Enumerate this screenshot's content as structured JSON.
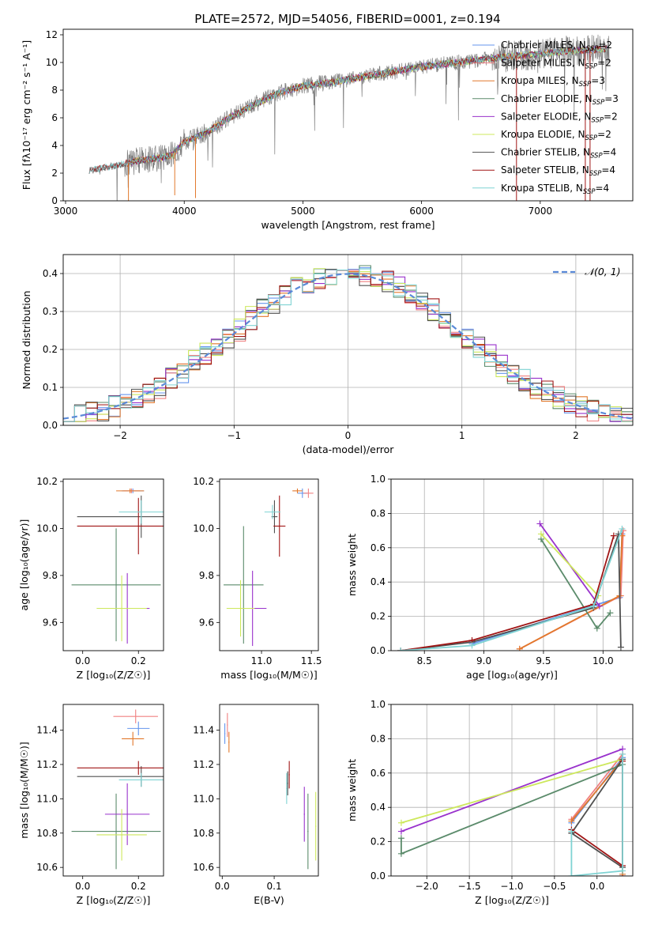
{
  "colors": {
    "chabrier_miles": "#6495ED",
    "salpeter_miles": "#F08080",
    "kroupa_miles": "#E2782B",
    "chabrier_elodie": "#5B8B6B",
    "salpeter_elodie": "#9932CC",
    "kroupa_elodie": "#CDE85C",
    "chabrier_stelib": "#505050",
    "salpeter_stelib": "#A01515",
    "kroupa_stelib": "#7FD3D3",
    "data": "#808080",
    "gauss": "#5A8AD8"
  },
  "chart_data": [
    {
      "id": "spectrum",
      "type": "line",
      "title": "PLATE=2572, MJD=54056, FIBERID=0001, z=0.194",
      "xlabel": "wavelength [Angstrom, rest frame]",
      "ylabel": "Flux [fλ10⁻¹⁷ erg cm⁻² s⁻¹ A⁻¹]",
      "xlim": [
        2980,
        7780
      ],
      "ylim": [
        0,
        12.4
      ],
      "xticks": [
        3000,
        4000,
        5000,
        6000,
        7000
      ],
      "yticks": [
        0,
        2,
        4,
        6,
        8,
        10,
        12
      ],
      "continuum": {
        "x": [
          3200,
          3400,
          3500,
          3600,
          3800,
          3900,
          4000,
          4100,
          4200,
          4400,
          4600,
          4800,
          5000,
          5200,
          5400,
          5600,
          5800,
          6000,
          6200,
          6400,
          6600,
          6800,
          7000,
          7200,
          7400,
          7600
        ],
        "y": [
          2.2,
          2.5,
          2.7,
          2.9,
          3.1,
          3.3,
          4.3,
          4.6,
          5.0,
          6.1,
          7.0,
          7.8,
          8.3,
          8.5,
          8.8,
          9.1,
          9.4,
          9.7,
          9.9,
          10.1,
          10.3,
          10.5,
          10.6,
          10.8,
          10.9,
          11.0
        ]
      },
      "legend_position": "upper-right",
      "legend": [
        {
          "label": "Chabrier MILES, N",
          "sub": "SSP",
          "tail": "=2",
          "color_key": "chabrier_miles"
        },
        {
          "label": "Salpeter MILES, N",
          "sub": "SSP",
          "tail": "=2",
          "color_key": "salpeter_miles"
        },
        {
          "label": "Kroupa MILES, N",
          "sub": "SSP",
          "tail": "=3",
          "color_key": "kroupa_miles"
        },
        {
          "label": "Chabrier ELODIE, N",
          "sub": "SSP",
          "tail": "=3",
          "color_key": "chabrier_elodie"
        },
        {
          "label": "Salpeter ELODIE, N",
          "sub": "SSP",
          "tail": "=2",
          "color_key": "salpeter_elodie"
        },
        {
          "label": "Kroupa ELODIE, N",
          "sub": "SSP",
          "tail": "=2",
          "color_key": "kroupa_elodie"
        },
        {
          "label": "Chabrier STELIB, N",
          "sub": "SSP",
          "tail": "=4",
          "color_key": "chabrier_stelib"
        },
        {
          "label": "Salpeter STELIB, N",
          "sub": "SSP",
          "tail": "=4",
          "color_key": "salpeter_stelib"
        },
        {
          "label": "Kroupa STELIB, N",
          "sub": "SSP",
          "tail": "=4",
          "color_key": "kroupa_stelib"
        }
      ]
    },
    {
      "id": "residuals",
      "type": "histogram",
      "xlabel": "(data-model)/error",
      "ylabel": "Normed distribution",
      "xlim": [
        -2.5,
        2.5
      ],
      "ylim": [
        0,
        0.45
      ],
      "xticks": [
        -2,
        -1,
        0,
        1,
        2
      ],
      "xtick_labels": [
        "−2",
        "−1",
        "0",
        "1",
        "2"
      ],
      "yticks": [
        0.0,
        0.1,
        0.2,
        0.3,
        0.4
      ],
      "ytick_labels": [
        "0.0",
        "0.1",
        "0.2",
        "0.3",
        "0.4"
      ],
      "grid": true,
      "bin_width": 0.1,
      "series": [
        {
          "color_key": "chabrier_miles",
          "offset": 0.012
        },
        {
          "color_key": "salpeter_miles",
          "offset": -0.01
        },
        {
          "color_key": "kroupa_miles",
          "offset": 0.018
        },
        {
          "color_key": "chabrier_elodie",
          "offset": 0.025
        },
        {
          "color_key": "salpeter_elodie",
          "offset": -0.005
        },
        {
          "color_key": "kroupa_elodie",
          "offset": 0.03
        },
        {
          "color_key": "chabrier_stelib",
          "offset": 0.008
        },
        {
          "color_key": "salpeter_stelib",
          "offset": -0.012
        },
        {
          "color_key": "kroupa_stelib",
          "offset": 0.015
        }
      ],
      "gauss": {
        "mean": 0,
        "sigma": 1
      },
      "legend_label": "𝒩(0, 1)",
      "legend_position": "upper-right"
    },
    {
      "id": "z-age",
      "type": "errorbar",
      "xlabel": "Z [log₁₀(Z/Z☉)]",
      "ylabel": "age  [log₁₀(age/yr)]",
      "xlim": [
        -0.07,
        0.29
      ],
      "ylim": [
        9.48,
        10.21
      ],
      "xticks": [
        0.0,
        0.2
      ],
      "xtick_labels": [
        "0.0",
        "0.2"
      ],
      "yticks": [
        9.6,
        9.8,
        10.0,
        10.2
      ],
      "ytick_labels": [
        "9.6",
        "9.8",
        "10.0",
        "10.2"
      ],
      "points": [
        {
          "c": "chabrier_miles",
          "x": 0.18,
          "y": 10.16,
          "xe": 0.04,
          "ye": 0.01
        },
        {
          "c": "salpeter_miles",
          "x": 0.175,
          "y": 10.16,
          "xe": 0.03,
          "ye": 0.01
        },
        {
          "c": "kroupa_miles",
          "x": 0.17,
          "y": 10.16,
          "xe": 0.05,
          "ye": 0.01
        },
        {
          "c": "chabrier_elodie",
          "x": 0.12,
          "y": 9.76,
          "xe": 0.16,
          "ye": 0.24
        },
        {
          "c": "salpeter_elodie",
          "x": 0.16,
          "y": 9.66,
          "xe": 0.08,
          "ye": 0.15
        },
        {
          "c": "kroupa_elodie",
          "x": 0.14,
          "y": 9.66,
          "xe": 0.09,
          "ye": 0.14
        },
        {
          "c": "chabrier_stelib",
          "x": 0.21,
          "y": 10.05,
          "xe": 0.23,
          "ye": 0.09
        },
        {
          "c": "salpeter_stelib",
          "x": 0.2,
          "y": 10.01,
          "xe": 0.22,
          "ye": 0.12
        },
        {
          "c": "kroupa_stelib",
          "x": 0.21,
          "y": 10.07,
          "xe": 0.08,
          "ye": 0.05
        }
      ]
    },
    {
      "id": "mass-age",
      "type": "errorbar",
      "xlabel": "mass [log₁₀(M/M☉)]",
      "ylabel": "",
      "xlim": [
        10.58,
        11.57
      ],
      "ylim": [
        9.48,
        10.21
      ],
      "xticks": [
        11.0,
        11.5
      ],
      "xtick_labels": [
        "11.0",
        "11.5"
      ],
      "yticks": [
        9.6,
        9.8,
        10.0,
        10.2
      ],
      "ytick_labels": [
        "9.6",
        "9.8",
        "10.0",
        "10.2"
      ],
      "points": [
        {
          "c": "chabrier_miles",
          "x": 11.41,
          "y": 10.15,
          "xe": 0.05,
          "ye": 0.02
        },
        {
          "c": "salpeter_miles",
          "x": 11.47,
          "y": 10.15,
          "xe": 0.05,
          "ye": 0.02
        },
        {
          "c": "kroupa_miles",
          "x": 11.36,
          "y": 10.16,
          "xe": 0.05,
          "ye": 0.01
        },
        {
          "c": "chabrier_elodie",
          "x": 10.82,
          "y": 9.76,
          "xe": 0.2,
          "ye": 0.25
        },
        {
          "c": "salpeter_elodie",
          "x": 10.91,
          "y": 9.66,
          "xe": 0.14,
          "ye": 0.16
        },
        {
          "c": "kroupa_elodie",
          "x": 10.79,
          "y": 9.66,
          "xe": 0.14,
          "ye": 0.12
        },
        {
          "c": "chabrier_stelib",
          "x": 11.13,
          "y": 10.05,
          "xe": 0.03,
          "ye": 0.07
        },
        {
          "c": "salpeter_stelib",
          "x": 11.18,
          "y": 10.01,
          "xe": 0.06,
          "ye": 0.13
        },
        {
          "c": "kroupa_stelib",
          "x": 11.11,
          "y": 10.07,
          "xe": 0.08,
          "ye": 0.03
        }
      ]
    },
    {
      "id": "age-weight",
      "type": "line",
      "xlabel": "age  [log₁₀(age/yr)]",
      "ylabel": "mass weight",
      "xlim": [
        8.22,
        10.25
      ],
      "ylim": [
        0,
        1.0
      ],
      "xticks": [
        8.5,
        9.0,
        9.5,
        10.0
      ],
      "xtick_labels": [
        "8.5",
        "9.0",
        "9.5",
        "10.0"
      ],
      "yticks": [
        0.0,
        0.2,
        0.4,
        0.6,
        0.8,
        1.0
      ],
      "ytick_labels": [
        "0.0",
        "0.2",
        "0.4",
        "0.6",
        "0.8",
        "1.0"
      ],
      "grid": true,
      "series": [
        {
          "c": "chabrier_miles",
          "x": [
            8.9,
            10.14,
            10.16
          ],
          "y": [
            0.04,
            0.31,
            0.68
          ]
        },
        {
          "c": "salpeter_miles",
          "x": [
            9.3,
            10.15,
            10.17
          ],
          "y": [
            0.01,
            0.32,
            0.7
          ]
        },
        {
          "c": "kroupa_miles",
          "x": [
            9.3,
            10.14,
            10.16
          ],
          "y": [
            0.01,
            0.32,
            0.67
          ]
        },
        {
          "c": "chabrier_elodie",
          "x": [
            9.48,
            9.95,
            10.06
          ],
          "y": [
            0.65,
            0.13,
            0.22
          ]
        },
        {
          "c": "salpeter_elodie",
          "x": [
            9.47,
            9.97
          ],
          "y": [
            0.74,
            0.26
          ]
        },
        {
          "c": "kroupa_elodie",
          "x": [
            9.48,
            9.96
          ],
          "y": [
            0.68,
            0.32
          ]
        },
        {
          "c": "chabrier_stelib",
          "x": [
            8.3,
            8.9,
            9.92,
            10.13,
            10.15
          ],
          "y": [
            0.0,
            0.05,
            0.25,
            0.68,
            0.02
          ]
        },
        {
          "c": "salpeter_stelib",
          "x": [
            8.3,
            8.9,
            9.92,
            10.09
          ],
          "y": [
            0.0,
            0.06,
            0.27,
            0.67
          ]
        },
        {
          "c": "kroupa_stelib",
          "x": [
            8.3,
            8.9,
            9.92,
            10.16
          ],
          "y": [
            0.0,
            0.03,
            0.26,
            0.71
          ]
        }
      ]
    },
    {
      "id": "z-mass",
      "type": "errorbar",
      "xlabel": "Z [log₁₀(Z/Z☉)]",
      "ylabel": "mass [log₁₀(M/M☉)]",
      "xlim": [
        -0.07,
        0.29
      ],
      "ylim": [
        10.55,
        11.55
      ],
      "xticks": [
        0.0,
        0.2
      ],
      "xtick_labels": [
        "0.0",
        "0.2"
      ],
      "yticks": [
        10.6,
        10.8,
        11.0,
        11.2,
        11.4
      ],
      "ytick_labels": [
        "10.6",
        "10.8",
        "11.0",
        "11.2",
        "11.4"
      ],
      "points": [
        {
          "c": "chabrier_miles",
          "x": 0.2,
          "y": 11.41,
          "xe": 0.04,
          "ye": 0.04
        },
        {
          "c": "salpeter_miles",
          "x": 0.19,
          "y": 11.48,
          "xe": 0.08,
          "ye": 0.04
        },
        {
          "c": "kroupa_miles",
          "x": 0.18,
          "y": 11.35,
          "xe": 0.04,
          "ye": 0.04
        },
        {
          "c": "chabrier_elodie",
          "x": 0.12,
          "y": 10.81,
          "xe": 0.16,
          "ye": 0.22
        },
        {
          "c": "salpeter_elodie",
          "x": 0.16,
          "y": 10.91,
          "xe": 0.08,
          "ye": 0.18
        },
        {
          "c": "kroupa_elodie",
          "x": 0.14,
          "y": 10.79,
          "xe": 0.09,
          "ye": 0.15
        },
        {
          "c": "chabrier_stelib",
          "x": 0.21,
          "y": 11.13,
          "xe": 0.23,
          "ye": 0.06
        },
        {
          "c": "salpeter_stelib",
          "x": 0.2,
          "y": 11.18,
          "xe": 0.22,
          "ye": 0.04
        },
        {
          "c": "kroupa_stelib",
          "x": 0.21,
          "y": 11.11,
          "xe": 0.08,
          "ye": 0.04
        }
      ]
    },
    {
      "id": "ebv-mass",
      "type": "errorbar",
      "xlabel": "E(B-V)",
      "ylabel": "",
      "xlim": [
        -0.005,
        0.185
      ],
      "ylim": [
        10.55,
        11.55
      ],
      "xticks": [
        0.0,
        0.1
      ],
      "xtick_labels": [
        "0.0",
        "0.1"
      ],
      "yticks": [
        10.6,
        10.8,
        11.0,
        11.2,
        11.4
      ],
      "ytick_labels": [
        "10.6",
        "10.8",
        "11.0",
        "11.2",
        "11.4"
      ],
      "points": [
        {
          "c": "chabrier_miles",
          "x": 0.005,
          "y": 11.38,
          "xe": 0.001,
          "ye": 0.06
        },
        {
          "c": "salpeter_miles",
          "x": 0.01,
          "y": 11.43,
          "xe": 0.001,
          "ye": 0.07
        },
        {
          "c": "kroupa_miles",
          "x": 0.013,
          "y": 11.33,
          "xe": 0.001,
          "ye": 0.06
        },
        {
          "c": "chabrier_elodie",
          "x": 0.165,
          "y": 10.81,
          "xe": 0.001,
          "ye": 0.22
        },
        {
          "c": "salpeter_elodie",
          "x": 0.158,
          "y": 10.91,
          "xe": 0.001,
          "ye": 0.16
        },
        {
          "c": "kroupa_elodie",
          "x": 0.18,
          "y": 10.84,
          "xe": 0.001,
          "ye": 0.2
        },
        {
          "c": "chabrier_stelib",
          "x": 0.126,
          "y": 11.09,
          "xe": 0.001,
          "ye": 0.07
        },
        {
          "c": "salpeter_stelib",
          "x": 0.129,
          "y": 11.14,
          "xe": 0.001,
          "ye": 0.08
        },
        {
          "c": "kroupa_stelib",
          "x": 0.124,
          "y": 11.06,
          "xe": 0.001,
          "ye": 0.09
        }
      ]
    },
    {
      "id": "z-weight",
      "type": "line",
      "xlabel": "Z [log₁₀(Z/Z☉)]",
      "ylabel": "mass weight",
      "xlim": [
        -2.42,
        0.42
      ],
      "ylim": [
        0,
        1.0
      ],
      "xticks": [
        -2.0,
        -1.5,
        -1.0,
        -0.5,
        0.0
      ],
      "xtick_labels": [
        "−2.0",
        "−1.5",
        "−1.0",
        "−0.5",
        "0.0"
      ],
      "yticks": [
        0.0,
        0.2,
        0.4,
        0.6,
        0.8,
        1.0
      ],
      "ytick_labels": [
        "0.0",
        "0.2",
        "0.4",
        "0.6",
        "0.8",
        "1.0"
      ],
      "grid": true,
      "series": [
        {
          "c": "chabrier_miles",
          "x": [
            -0.3,
            0.3,
            0.3
          ],
          "y": [
            0.31,
            0.69,
            0.0
          ]
        },
        {
          "c": "salpeter_miles",
          "x": [
            -0.3,
            0.3,
            0.3
          ],
          "y": [
            0.33,
            0.71,
            0.0
          ]
        },
        {
          "c": "kroupa_miles",
          "x": [
            -0.3,
            0.3,
            0.3
          ],
          "y": [
            0.32,
            0.68,
            0.01
          ]
        },
        {
          "c": "chabrier_elodie",
          "x": [
            -2.3,
            -2.3,
            0.3
          ],
          "y": [
            0.22,
            0.13,
            0.65
          ]
        },
        {
          "c": "salpeter_elodie",
          "x": [
            -2.3,
            0.3
          ],
          "y": [
            0.26,
            0.74
          ]
        },
        {
          "c": "kroupa_elodie",
          "x": [
            -2.3,
            0.3
          ],
          "y": [
            0.31,
            0.68
          ]
        },
        {
          "c": "chabrier_stelib",
          "x": [
            -0.3,
            0.3,
            0.3,
            -0.3
          ],
          "y": [
            0.25,
            0.05,
            0.68,
            0.25
          ]
        },
        {
          "c": "salpeter_stelib",
          "x": [
            -0.3,
            0.3,
            0.3
          ],
          "y": [
            0.27,
            0.06,
            0.67
          ]
        },
        {
          "c": "kroupa_stelib",
          "x": [
            -0.3,
            -0.3,
            0.3,
            0.3
          ],
          "y": [
            0.26,
            0.0,
            0.03,
            0.71
          ]
        }
      ]
    }
  ]
}
